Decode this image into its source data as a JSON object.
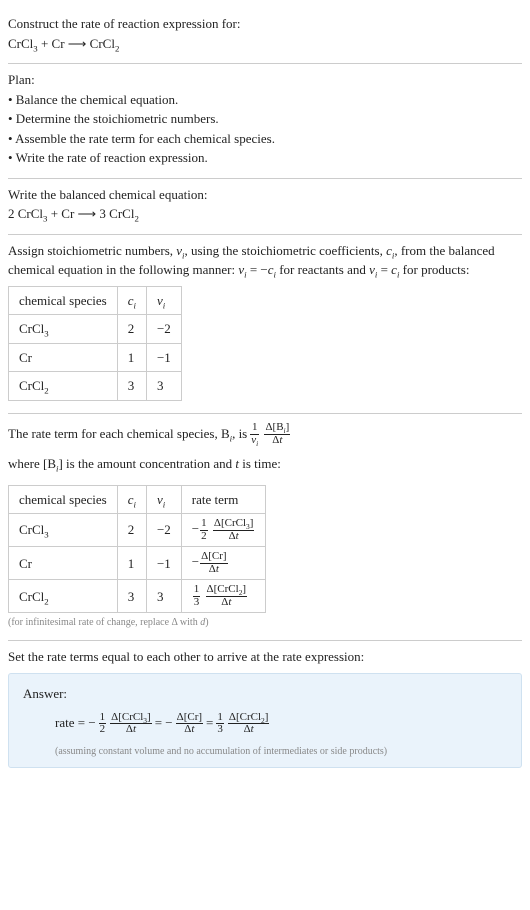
{
  "p1": {
    "line1": "Construct the rate of reaction expression for:",
    "eq_html": "CrCl<span class=\"sub\">3</span> + Cr ⟶ CrCl<span class=\"sub\">2</span>"
  },
  "plan": {
    "title": "Plan:",
    "b1": "• Balance the chemical equation.",
    "b2": "• Determine the stoichiometric numbers.",
    "b3": "• Assemble the rate term for each chemical species.",
    "b4": "• Write the rate of reaction expression."
  },
  "balanced": {
    "title": "Write the balanced chemical equation:",
    "eq_html": "2 CrCl<span class=\"sub\">3</span> + Cr ⟶ 3 CrCl<span class=\"sub\">2</span>"
  },
  "stoich": {
    "intro_html": "Assign stoichiometric numbers, <span class=\"itpar\">ν<span class=\"sub\">i</span></span>, using the stoichiometric coefficients, <span class=\"itpar\">c<span class=\"sub\">i</span></span>, from the balanced chemical equation in the following manner: <span class=\"itpar\">ν<span class=\"sub\">i</span></span> = −<span class=\"itpar\">c<span class=\"sub\">i</span></span> for reactants and <span class=\"itpar\">ν<span class=\"sub\">i</span></span> = <span class=\"itpar\">c<span class=\"sub\">i</span></span> for products:",
    "headers": {
      "species": "chemical species",
      "c_html": "<span class=\"itpar\">c<span class=\"sub\">i</span></span>",
      "nu_html": "<span class=\"itpar\">ν<span class=\"sub\">i</span></span>"
    },
    "rows": [
      {
        "sp_html": "CrCl<span class=\"sub\">3</span>",
        "c": "2",
        "nu": "−2"
      },
      {
        "sp_html": "Cr",
        "c": "1",
        "nu": "−1"
      },
      {
        "sp_html": "CrCl<span class=\"sub\">2</span>",
        "c": "3",
        "nu": "3"
      }
    ]
  },
  "rateterm": {
    "intro_pre": "The rate term for each chemical species, B",
    "intro_mid": ", is ",
    "intro_post_html": " where [B<span class=\"sub\"><span class=\"itpar\">i</span></span>] is the amount concentration and <span class=\"itpar\">t</span> is time:",
    "headers": {
      "species": "chemical species",
      "c_html": "<span class=\"itpar\">c<span class=\"sub\">i</span></span>",
      "nu_html": "<span class=\"itpar\">ν<span class=\"sub\">i</span></span>",
      "rate": "rate term"
    },
    "rows": [
      {
        "sp_html": "CrCl<span class=\"sub\">3</span>",
        "c": "2",
        "nu": "−2",
        "term_html": "−<span class=\"frac\"><span class=\"num\">1</span><span class=\"den\">2</span></span> <span class=\"frac\"><span class=\"num\">Δ[CrCl<span class=\"sub\">3</span>]</span><span class=\"den\">Δ<span class=\"itpar\">t</span></span></span>"
      },
      {
        "sp_html": "Cr",
        "c": "1",
        "nu": "−1",
        "term_html": "−<span class=\"frac\"><span class=\"num\">Δ[Cr]</span><span class=\"den\">Δ<span class=\"itpar\">t</span></span></span>"
      },
      {
        "sp_html": "CrCl<span class=\"sub\">2</span>",
        "c": "3",
        "nu": "3",
        "term_html": "<span class=\"frac\"><span class=\"num\">1</span><span class=\"den\">3</span></span> <span class=\"frac\"><span class=\"num\">Δ[CrCl<span class=\"sub\">2</span>]</span><span class=\"den\">Δ<span class=\"itpar\">t</span></span></span>"
      }
    ],
    "footnote_html": "(for infinitesimal rate of change, replace Δ with <span class=\"itpar\">d</span>)"
  },
  "final": {
    "title": "Set the rate terms equal to each other to arrive at the rate expression:",
    "answer_label": "Answer:",
    "rate_html": "rate = −<span class=\"frac\"><span class=\"num\">1</span><span class=\"den\">2</span></span> <span class=\"frac\"><span class=\"num\">Δ[CrCl<span class=\"sub\">3</span>]</span><span class=\"den\">Δ<span class=\"itpar\">t</span></span></span> = −<span class=\"frac\"><span class=\"num\">Δ[Cr]</span><span class=\"den\">Δ<span class=\"itpar\">t</span></span></span> = <span class=\"frac\"><span class=\"num\">1</span><span class=\"den\">3</span></span> <span class=\"frac\"><span class=\"num\">Δ[CrCl<span class=\"sub\">2</span>]</span><span class=\"den\">Δ<span class=\"itpar\">t</span></span></span>",
    "note": "(assuming constant volume and no accumulation of intermediates or side products)"
  }
}
